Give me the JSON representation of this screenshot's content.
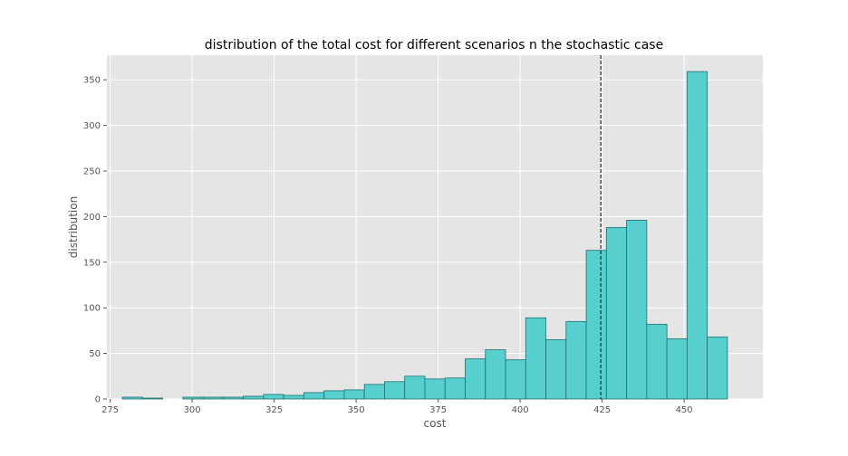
{
  "chart_data": {
    "type": "bar",
    "title": "distribution of the total cost for different scenarios n the stochastic case",
    "xlabel": "cost",
    "ylabel": "distribution",
    "xlim": [
      274,
      474
    ],
    "ylim": [
      0,
      377
    ],
    "grid": true,
    "x_ticks": [
      275,
      300,
      325,
      350,
      375,
      400,
      425,
      450
    ],
    "y_ticks": [
      0,
      50,
      100,
      150,
      200,
      250,
      300,
      350
    ],
    "bin_edges": [
      278.7,
      284.85,
      291.0,
      297.15,
      303.3,
      309.45,
      315.6,
      321.75,
      327.9,
      334.05,
      340.2,
      346.35,
      352.5,
      358.65,
      364.8,
      370.95,
      377.1,
      383.25,
      389.4,
      395.55,
      401.7,
      407.85,
      414.0,
      420.15,
      426.3,
      432.45,
      438.6,
      444.75,
      450.9,
      457.05,
      463.2
    ],
    "values": [
      2,
      1,
      0,
      2,
      2,
      2,
      3,
      5,
      4,
      7,
      9,
      10,
      16,
      19,
      25,
      22,
      23,
      44,
      54,
      43,
      89,
      65,
      85,
      163,
      188,
      196,
      82,
      66,
      359,
      68
    ],
    "bar_color": "#4ecdcc",
    "bar_edge_color": "#1f6f6f",
    "vline": {
      "x": 424.6,
      "style": "dashed",
      "color": "#000000"
    },
    "background": "#e5e5e5",
    "grid_color": "#ffffff"
  }
}
